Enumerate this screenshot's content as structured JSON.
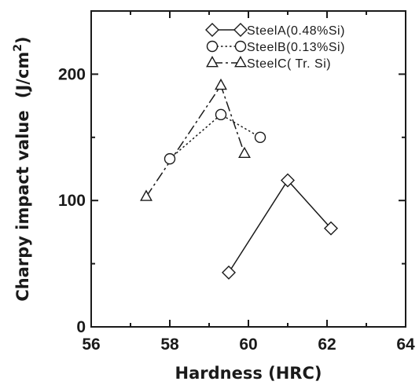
{
  "chart_data": {
    "type": "line",
    "xlabel": "Hardness (HRC)",
    "ylabel": "Charpy impact value",
    "ylabel_unit_prefix": "(J/cm",
    "ylabel_unit_exp": "2",
    "ylabel_unit_suffix": ")",
    "xlim": [
      56,
      64
    ],
    "ylim": [
      0,
      250
    ],
    "x_ticks": [
      56,
      58,
      60,
      62,
      64
    ],
    "y_ticks": [
      0,
      100,
      200
    ],
    "grid": false,
    "legend_position": "top-right",
    "series": [
      {
        "name": "SteelA(0.48%Si)",
        "marker": "diamond",
        "line": "solid",
        "x": [
          59.5,
          61.0,
          62.1
        ],
        "y": [
          43,
          116,
          78
        ]
      },
      {
        "name": "SteelB(0.13%Si)",
        "marker": "circle",
        "line": "dotted",
        "x": [
          58.0,
          59.3,
          60.3
        ],
        "y": [
          133,
          168,
          150
        ]
      },
      {
        "name": "SteelC( Tr. Si)",
        "marker": "triangle",
        "line": "dashdot",
        "x": [
          57.4,
          59.3,
          59.9
        ],
        "y": [
          103,
          191,
          137
        ]
      }
    ]
  }
}
